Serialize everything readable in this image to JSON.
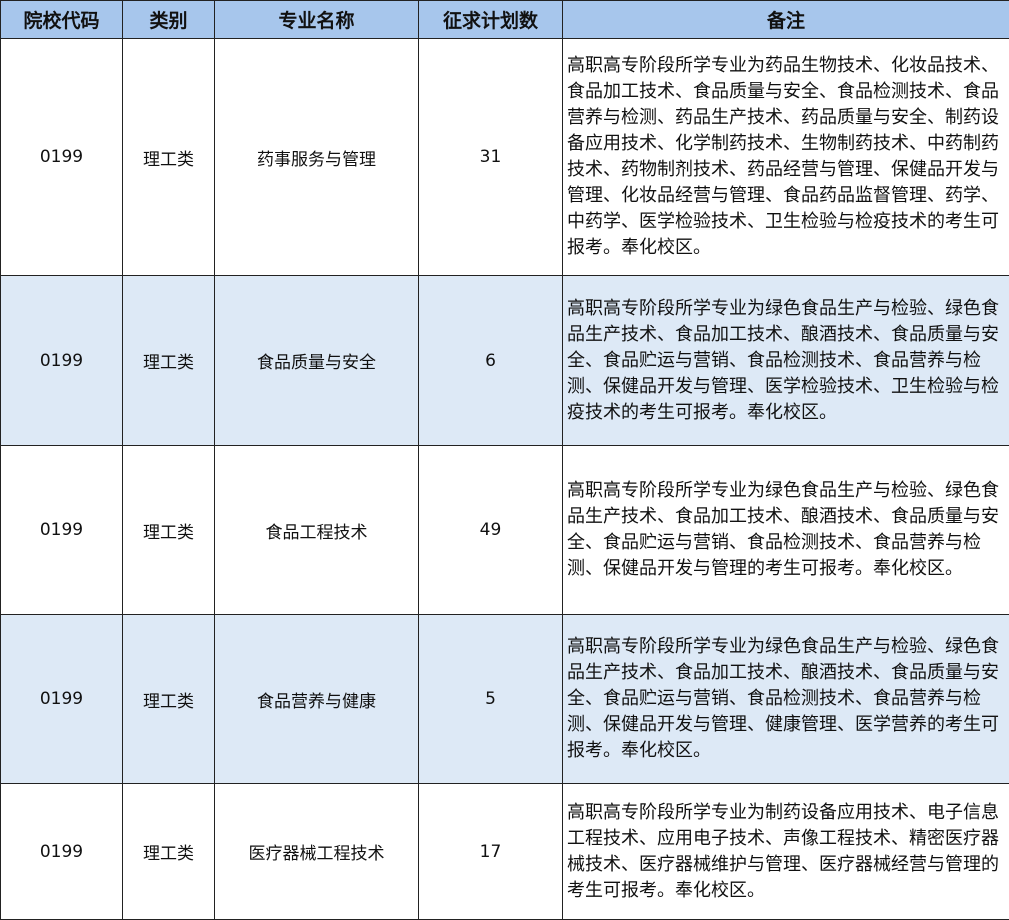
{
  "table": {
    "header": [
      "院校代码",
      "类别",
      "专业名称",
      "征求计划数",
      "备注"
    ],
    "rows": [
      [
        "0199",
        "理工类",
        "药事服务与管理",
        31,
        "高职高专阶段所学专业为药品生物技术、化妆品技术、食品加工技术、食品质量与安全、食品检测技术、食品营养与检测、药品生产技术、药品质量与安全、制药设备应用技术、化学制药技术、生物制药技术、中药制药技术、药物制剂技术、药品经营与管理、保健品开发与管理、化妆品经营与管理、食品药品监督管理、药学、中药学、医学检验技术、卫生检验与检疫技术的考生可报考。奉化校区。"
      ],
      [
        "0199",
        "理工类",
        "食品质量与安全",
        6,
        "高职高专阶段所学专业为绿色食品生产与检验、绿色食品生产技术、食品加工技术、酿酒技术、食品质量与安全、食品贮运与营销、食品检测技术、食品营养与检测、保健品开发与管理、医学检验技术、卫生检验与检疫技术的考生可报考。奉化校区。"
      ],
      [
        "0199",
        "理工类",
        "食品工程技术",
        49,
        "高职高专阶段所学专业为绿色食品生产与检验、绿色食品生产技术、食品加工技术、酿酒技术、食品质量与安全、食品贮运与营销、食品检测技术、食品营养与检测、保健品开发与管理的考生可报考。奉化校区。"
      ],
      [
        "0199",
        "理工类",
        "食品营养与健康",
        5,
        "高职高专阶段所学专业为绿色食品生产与检验、绿色食品生产技术、食品加工技术、酿酒技术、食品质量与安全、食品贮运与营销、食品检测技术、食品营养与检测、保健品开发与管理、健康管理、医学营养的考生可报考。奉化校区。"
      ],
      [
        "0199",
        "理工类",
        "医疗器械工程技术",
        17,
        "高职高专阶段所学专业为制药设备应用技术、电子信息工程技术、应用电子技术、声像工程技术、精密医疗器械技术、医疗器械维护与管理、医疗器械经营与管理的考生可报考。奉化校区。"
      ]
    ]
  }
}
